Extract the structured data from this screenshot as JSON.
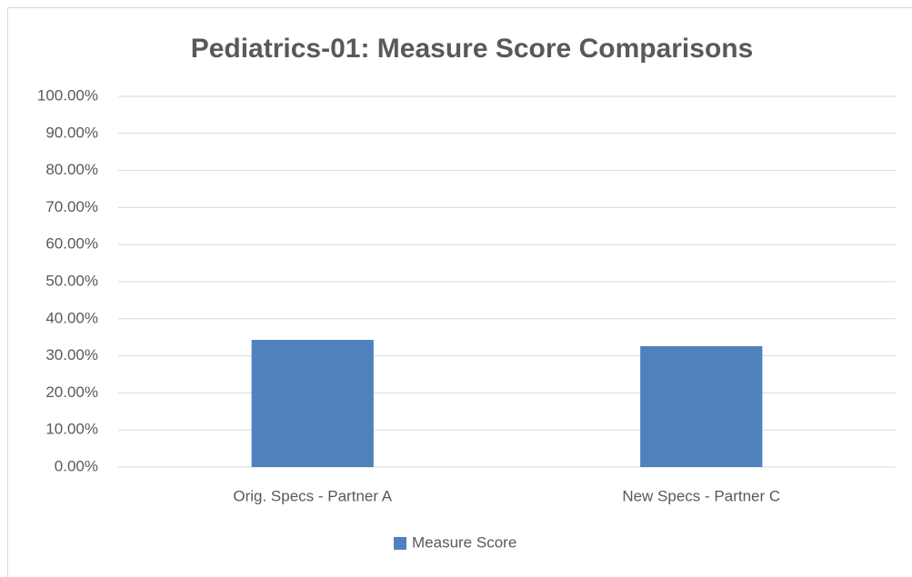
{
  "chart_data": {
    "type": "bar",
    "title": "Pediatrics-01: Measure Score Comparisons",
    "categories": [
      "Orig. Specs - Partner A",
      "New Specs - Partner C"
    ],
    "series": [
      {
        "name": "Measure Score",
        "color": "#4f81bd",
        "values": [
          34.3,
          32.6
        ]
      }
    ],
    "ylim": [
      0,
      100
    ],
    "yticks": [
      {
        "value": 0,
        "label": "0.00%"
      },
      {
        "value": 10,
        "label": "10.00%"
      },
      {
        "value": 20,
        "label": "20.00%"
      },
      {
        "value": 30,
        "label": "30.00%"
      },
      {
        "value": 40,
        "label": "40.00%"
      },
      {
        "value": 50,
        "label": "50.00%"
      },
      {
        "value": 60,
        "label": "60.00%"
      },
      {
        "value": 70,
        "label": "70.00%"
      },
      {
        "value": 80,
        "label": "80.00%"
      },
      {
        "value": 90,
        "label": "90.00%"
      },
      {
        "value": 100,
        "label": "100.00%"
      }
    ],
    "grid": true,
    "legend": "bottom"
  }
}
